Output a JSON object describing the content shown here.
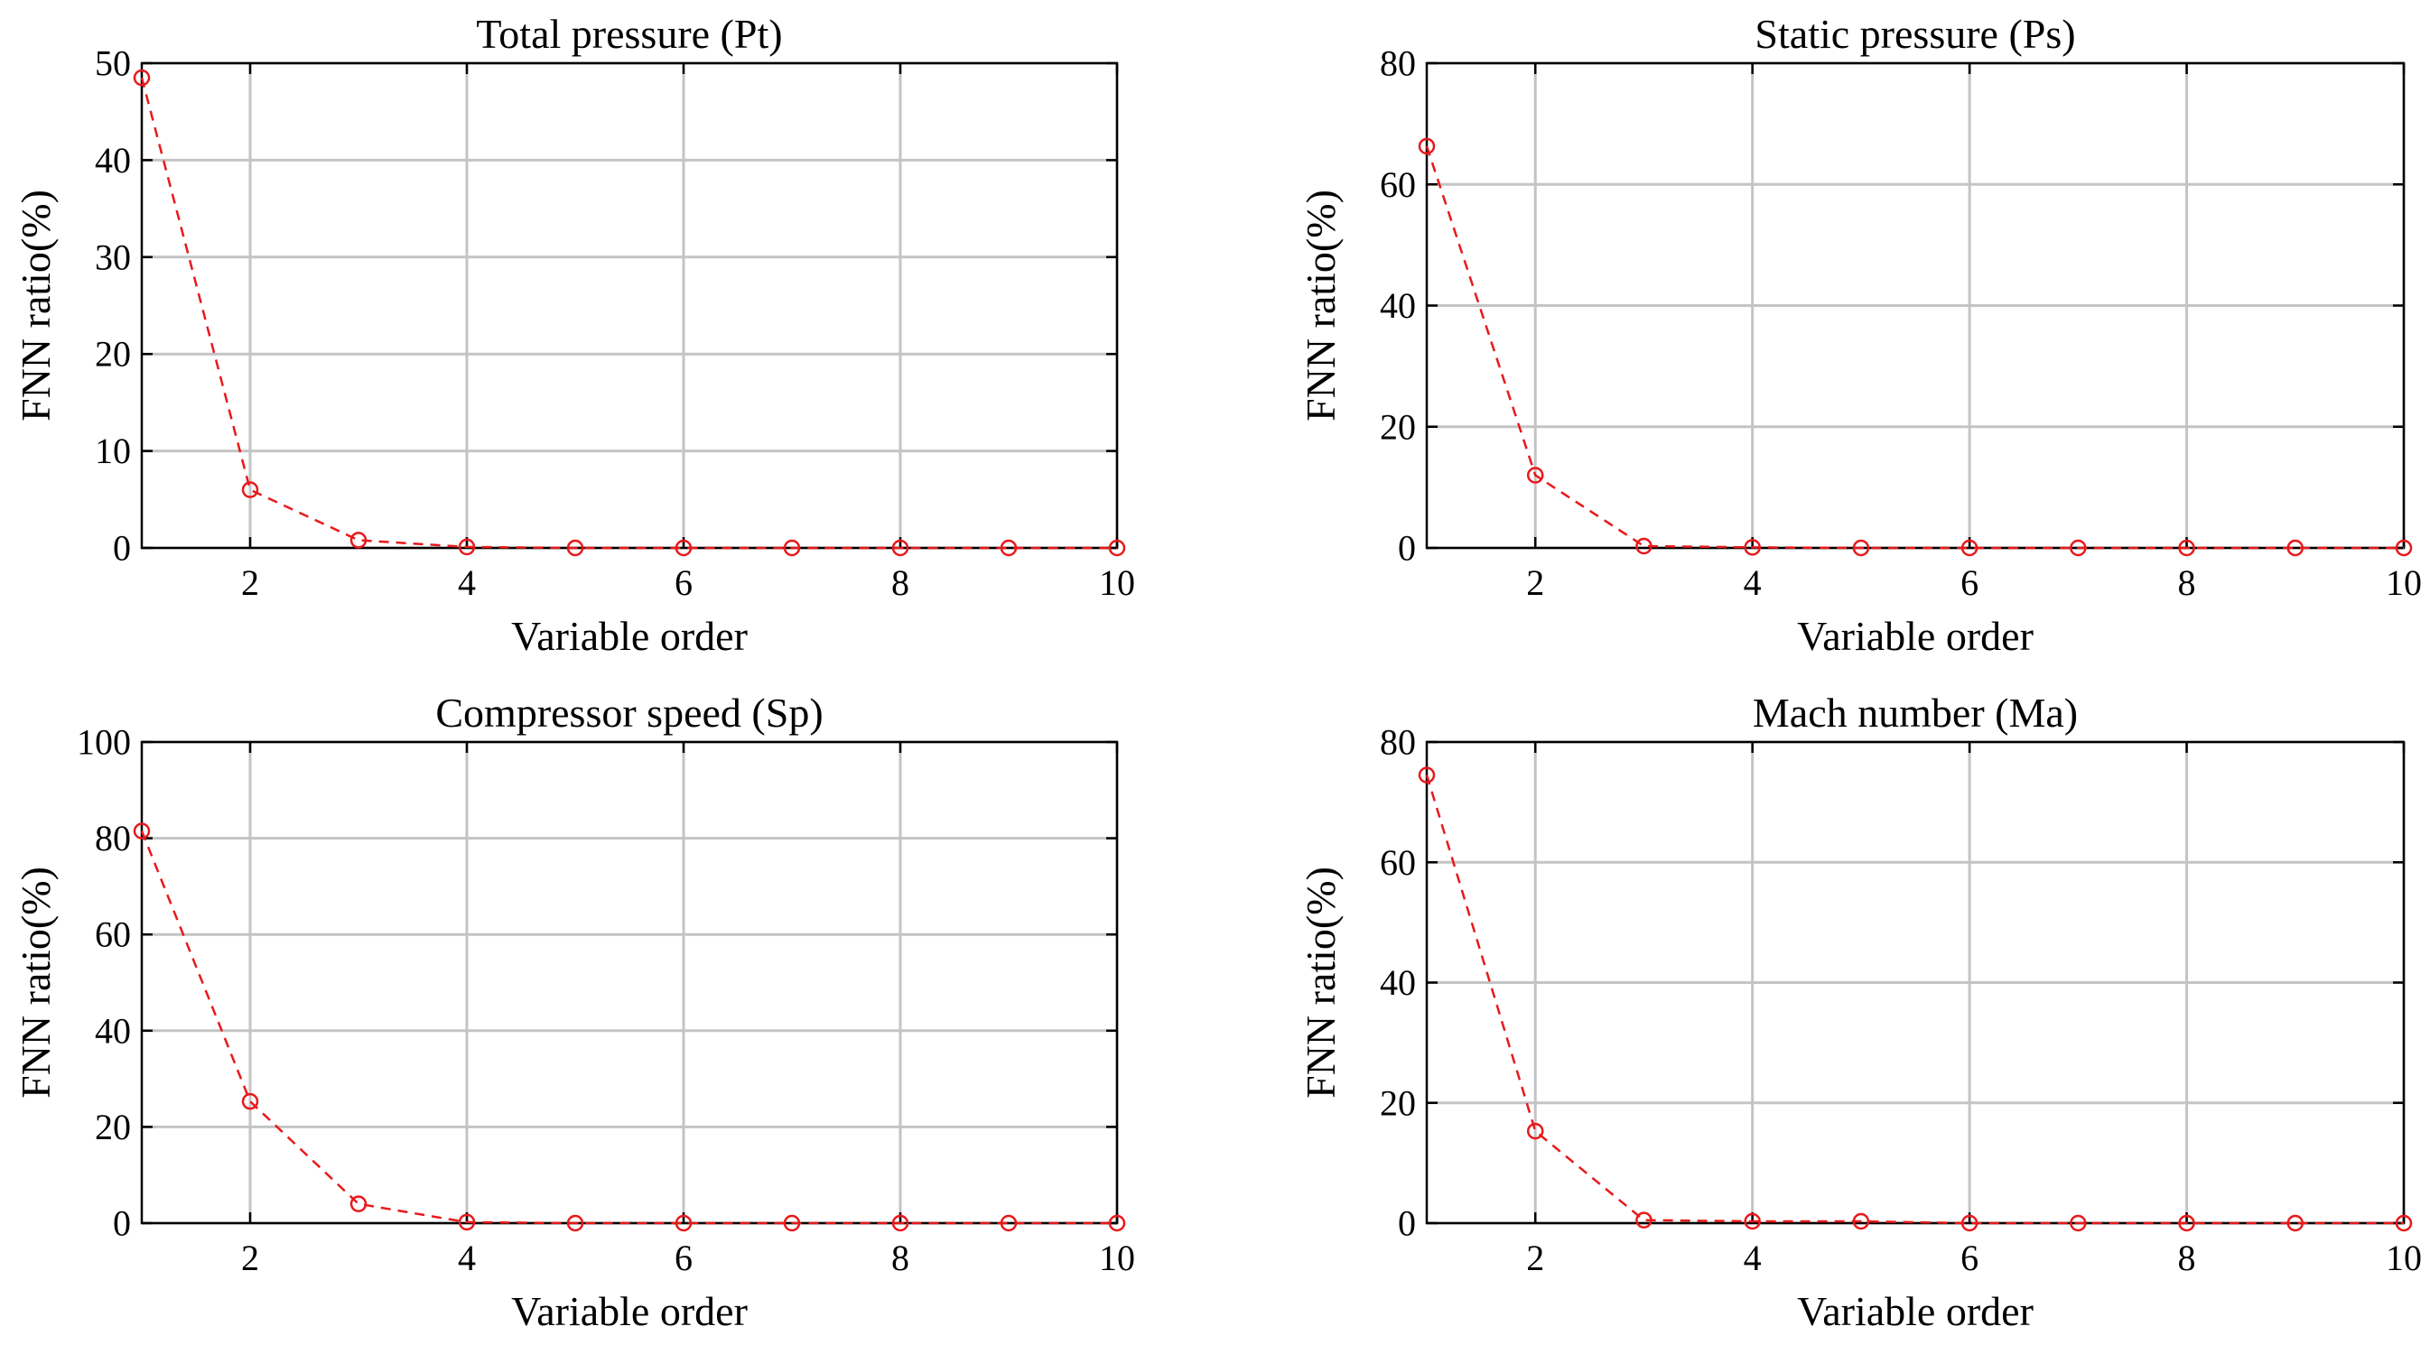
{
  "chart_data": [
    {
      "type": "line",
      "title": "Total pressure (Pt)",
      "xlabel": "Variable order",
      "ylabel": "FNN ratio(%)",
      "xlim": [
        1,
        10
      ],
      "ylim": [
        0,
        50
      ],
      "xticks": [
        2,
        4,
        6,
        8,
        10
      ],
      "yticks": [
        0,
        10,
        20,
        30,
        40,
        50
      ],
      "grid": true,
      "x": [
        1,
        2,
        3,
        4,
        5,
        6,
        7,
        8,
        9,
        10
      ],
      "series": [
        {
          "name": "FNN ratio",
          "color": "#e8191b",
          "values": [
            48.5,
            6.0,
            0.8,
            0.1,
            0.0,
            0.0,
            0.0,
            0.0,
            0.0,
            0.0
          ]
        }
      ]
    },
    {
      "type": "line",
      "title": "Static pressure (Ps)",
      "xlabel": "Variable order",
      "ylabel": "FNN ratio(%)",
      "xlim": [
        1,
        10
      ],
      "ylim": [
        0,
        80
      ],
      "xticks": [
        2,
        4,
        6,
        8,
        10
      ],
      "yticks": [
        0,
        20,
        40,
        60,
        80
      ],
      "grid": true,
      "x": [
        1,
        2,
        3,
        4,
        5,
        6,
        7,
        8,
        9,
        10
      ],
      "series": [
        {
          "name": "FNN ratio",
          "color": "#e8191b",
          "values": [
            66.3,
            12.0,
            0.3,
            0.1,
            0.0,
            0.0,
            0.0,
            0.0,
            0.0,
            0.0
          ]
        }
      ]
    },
    {
      "type": "line",
      "title": "Compressor speed (Sp)",
      "xlabel": "Variable order",
      "ylabel": "FNN ratio(%)",
      "xlim": [
        1,
        10
      ],
      "ylim": [
        0,
        100
      ],
      "xticks": [
        2,
        4,
        6,
        8,
        10
      ],
      "yticks": [
        0,
        20,
        40,
        60,
        80,
        100
      ],
      "grid": true,
      "x": [
        1,
        2,
        3,
        4,
        5,
        6,
        7,
        8,
        9,
        10
      ],
      "series": [
        {
          "name": "FNN ratio",
          "color": "#e8191b",
          "values": [
            81.5,
            25.3,
            4.0,
            0.2,
            0.0,
            0.0,
            0.0,
            0.0,
            0.0,
            0.0
          ]
        }
      ]
    },
    {
      "type": "line",
      "title": "Mach number (Ma)",
      "xlabel": "Variable order",
      "ylabel": "FNN ratio(%)",
      "xlim": [
        1,
        10
      ],
      "ylim": [
        0,
        80
      ],
      "xticks": [
        2,
        4,
        6,
        8,
        10
      ],
      "yticks": [
        0,
        20,
        40,
        60,
        80
      ],
      "grid": true,
      "x": [
        1,
        2,
        3,
        4,
        5,
        6,
        7,
        8,
        9,
        10
      ],
      "series": [
        {
          "name": "FNN ratio",
          "color": "#e8191b",
          "values": [
            74.5,
            15.3,
            0.5,
            0.3,
            0.3,
            0.0,
            0.0,
            0.0,
            0.0,
            0.0
          ]
        }
      ]
    }
  ]
}
